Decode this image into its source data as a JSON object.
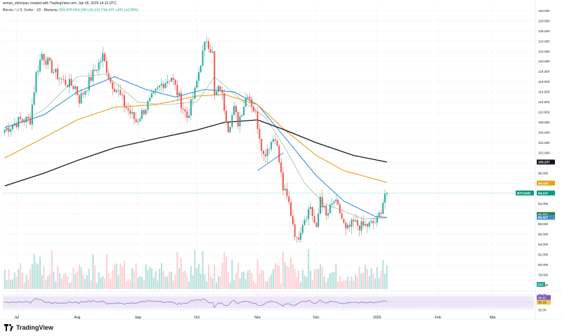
{
  "header": {
    "author_line": "arman_shirinyan created with TradingView.com, Jan 06, 2026 14:13 UTC"
  },
  "legend": {
    "symbol": "Bitcoin / U.S. Dollar · 1D · Bitstamp",
    "open": "O91,876",
    "high": "H94,158",
    "low": "L91,131",
    "close": "C94,107",
    "change": "+231 (+0.25%)"
  },
  "branding": {
    "logo_text": "TradingView"
  },
  "chart_data": {
    "type": "candlestick",
    "symbol": "BTCUSD",
    "y_ticks": [
      76000,
      78000,
      80000,
      82000,
      84000,
      86000,
      88000,
      90000,
      92000,
      94000,
      96000,
      98000,
      100000,
      102000,
      104000,
      106000,
      108000,
      110000,
      112000,
      114000,
      116000,
      118000,
      120000,
      122000,
      124000,
      126000,
      128000,
      130000
    ],
    "x_labels": [
      "Jul",
      "Aug",
      "Sep",
      "Oct",
      "Nov",
      "Dec",
      "2026",
      "Feb",
      "Mar"
    ],
    "x_label_dates": [
      "2025-07-01",
      "2025-08-01",
      "2025-09-01",
      "2025-10-01",
      "2025-11-01",
      "2025-12-01",
      "2026-01-01",
      "2026-02-01",
      "2026-03-01"
    ],
    "price_keypoints": [
      [
        "2025-06-25",
        106500
      ],
      [
        "2025-07-03",
        108500
      ],
      [
        "2025-07-08",
        108500
      ],
      [
        "2025-07-11",
        117500
      ],
      [
        "2025-07-14",
        121500
      ],
      [
        "2025-07-20",
        118000
      ],
      [
        "2025-07-25",
        116000
      ],
      [
        "2025-07-31",
        115000
      ],
      [
        "2025-08-02",
        112500
      ],
      [
        "2025-08-05",
        114500
      ],
      [
        "2025-08-09",
        117500
      ],
      [
        "2025-08-14",
        121000
      ],
      [
        "2025-08-18",
        116000
      ],
      [
        "2025-08-22",
        114000
      ],
      [
        "2025-08-25",
        111500
      ],
      [
        "2025-08-31",
        108200
      ],
      [
        "2025-09-05",
        111000
      ],
      [
        "2025-09-13",
        115500
      ],
      [
        "2025-09-18",
        117000
      ],
      [
        "2025-09-22",
        112800
      ],
      [
        "2025-09-26",
        109000
      ],
      [
        "2025-09-30",
        114000
      ],
      [
        "2025-10-03",
        120000
      ],
      [
        "2025-10-06",
        124500
      ],
      [
        "2025-10-09",
        121500
      ],
      [
        "2025-10-10",
        113000
      ],
      [
        "2025-10-13",
        115000
      ],
      [
        "2025-10-17",
        107000
      ],
      [
        "2025-10-20",
        110500
      ],
      [
        "2025-10-22",
        108000
      ],
      [
        "2025-10-27",
        114000
      ],
      [
        "2025-10-31",
        109500
      ],
      [
        "2025-11-04",
        101500
      ],
      [
        "2025-11-06",
        103000
      ],
      [
        "2025-11-10",
        105500
      ],
      [
        "2025-11-14",
        95000
      ],
      [
        "2025-11-17",
        92000
      ],
      [
        "2025-11-21",
        84500
      ],
      [
        "2025-11-24",
        88500
      ],
      [
        "2025-11-28",
        91500
      ],
      [
        "2025-12-01",
        86500
      ],
      [
        "2025-12-03",
        93500
      ],
      [
        "2025-12-06",
        89300
      ],
      [
        "2025-12-10",
        92500
      ],
      [
        "2025-12-13",
        90300
      ],
      [
        "2025-12-16",
        86500
      ],
      [
        "2025-12-20",
        88200
      ],
      [
        "2025-12-24",
        87500
      ],
      [
        "2025-12-28",
        87800
      ],
      [
        "2026-01-01",
        88500
      ],
      [
        "2026-01-03",
        91000
      ],
      [
        "2026-01-05",
        94000
      ],
      [
        "2026-01-06",
        94107
      ]
    ],
    "ma_lines": [
      {
        "color": "#94b894",
        "keypoints": [
          [
            "2025-06-25",
            106500
          ],
          [
            "2025-07-15",
            110500
          ],
          [
            "2025-08-01",
            117000
          ],
          [
            "2025-08-15",
            117500
          ],
          [
            "2025-09-01",
            112000
          ],
          [
            "2025-09-15",
            111500
          ],
          [
            "2025-10-01",
            112000
          ],
          [
            "2025-10-10",
            117000
          ],
          [
            "2025-10-25",
            112000
          ],
          [
            "2025-11-05",
            109000
          ],
          [
            "2025-11-15",
            103000
          ],
          [
            "2025-11-25",
            96000
          ],
          [
            "2025-12-05",
            92000
          ],
          [
            "2025-12-15",
            90500
          ],
          [
            "2025-12-25",
            89000
          ],
          [
            "2026-01-06",
            89200
          ]
        ]
      },
      {
        "color": "#3f8ed8",
        "keypoints": [
          [
            "2025-06-25",
            107000
          ],
          [
            "2025-07-15",
            109500
          ],
          [
            "2025-08-01",
            114000
          ],
          [
            "2025-08-20",
            117000
          ],
          [
            "2025-09-05",
            114500
          ],
          [
            "2025-09-20",
            113000
          ],
          [
            "2025-10-05",
            114500
          ],
          [
            "2025-10-20",
            114000
          ],
          [
            "2025-11-01",
            111500
          ],
          [
            "2025-11-15",
            105000
          ],
          [
            "2025-12-01",
            97500
          ],
          [
            "2025-12-15",
            92500
          ],
          [
            "2025-12-31",
            89500
          ],
          [
            "2026-01-06",
            89300
          ]
        ]
      },
      {
        "color": "#e8a020",
        "keypoints": [
          [
            "2025-06-25",
            101000
          ],
          [
            "2025-07-15",
            105000
          ],
          [
            "2025-08-01",
            108500
          ],
          [
            "2025-08-20",
            111000
          ],
          [
            "2025-09-10",
            111500
          ],
          [
            "2025-10-01",
            113200
          ],
          [
            "2025-10-15",
            113500
          ],
          [
            "2025-11-01",
            111500
          ],
          [
            "2025-11-15",
            106500
          ],
          [
            "2025-12-01",
            101500
          ],
          [
            "2025-12-15",
            98500
          ],
          [
            "2026-01-06",
            96200
          ]
        ]
      },
      {
        "color": "#131722",
        "keypoints": [
          [
            "2025-06-25",
            95500
          ],
          [
            "2025-07-15",
            98000
          ],
          [
            "2025-08-01",
            100500
          ],
          [
            "2025-08-20",
            103000
          ],
          [
            "2025-09-10",
            104800
          ],
          [
            "2025-10-01",
            106500
          ],
          [
            "2025-10-15",
            108000
          ],
          [
            "2025-11-01",
            108500
          ],
          [
            "2025-11-15",
            106500
          ],
          [
            "2025-12-01",
            104000
          ],
          [
            "2025-12-20",
            101500
          ],
          [
            "2026-01-06",
            100200
          ]
        ]
      }
    ],
    "trendline": [
      [
        "2025-11-01",
        98500
      ],
      [
        "2025-11-14",
        102000
      ]
    ],
    "price_tags": [
      {
        "label": "100,207",
        "value": 100207,
        "bg": "#131722",
        "fg": "#ffffff"
      },
      {
        "label": "96,048",
        "value": 96048,
        "bg": "#e8a020",
        "fg": "#ffffff"
      },
      {
        "label": "BTCUSD",
        "value": 94107,
        "bg": "#089981",
        "fg": "#ffffff",
        "side": "left"
      },
      {
        "label": "94,107",
        "value": 94107,
        "bg": "#089981",
        "fg": "#ffffff"
      },
      {
        "label": "89,852",
        "value": 89852,
        "bg": "#2e7d32",
        "fg": "#ffffff"
      },
      {
        "label": "89,327",
        "value": 89327,
        "bg": "#3f8ed8",
        "fg": "#ffffff"
      }
    ],
    "volume_tag": "555",
    "rsi": {
      "ticks": [
        25,
        50,
        75
      ],
      "last": 65.97,
      "ma_last": 50.18,
      "band": [
        30,
        70
      ]
    },
    "colors": {
      "up": "#26a69a",
      "down": "#ef5350",
      "rsi_line": "#7e57c2"
    }
  }
}
